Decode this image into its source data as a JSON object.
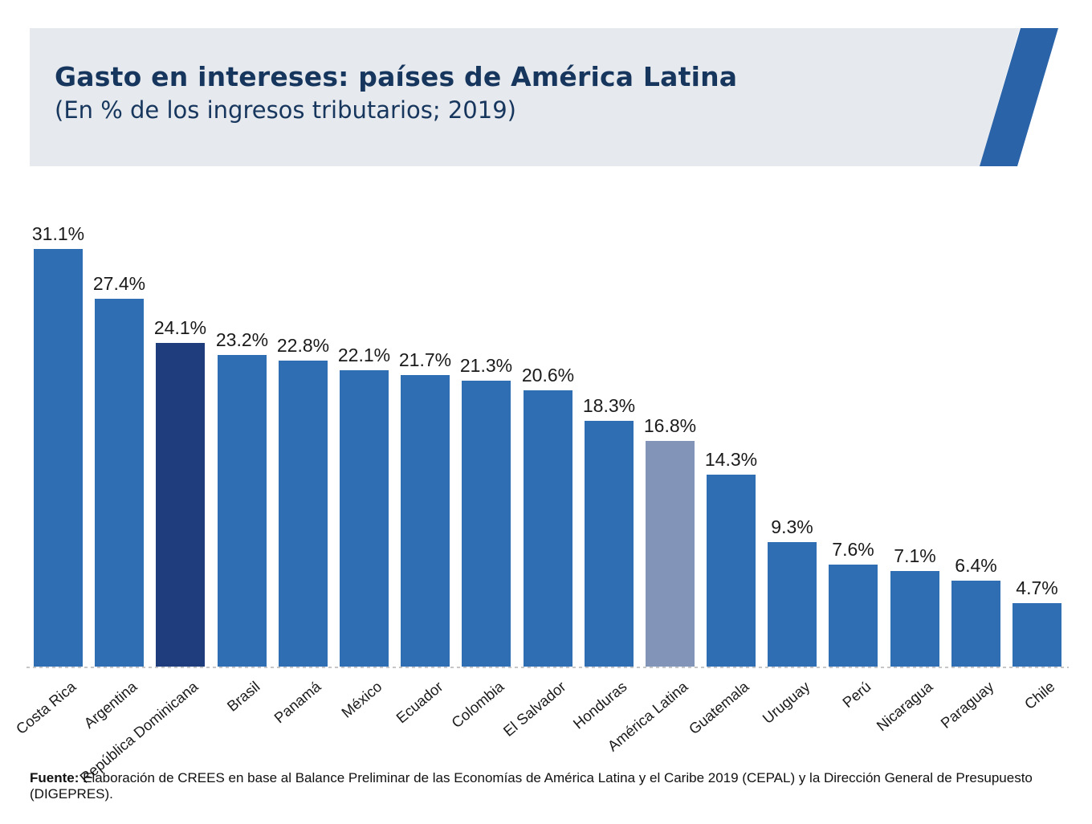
{
  "header": {
    "title": "Gasto en intereses: países de América Latina",
    "subtitle": "(En % de los ingresos tributarios; 2019)"
  },
  "footer": {
    "source_label": "Fuente:",
    "source_text": " Elaboración de CREES en base al Balance Preliminar de las Economías de América Latina y el Caribe 2019 (CEPAL) y la Dirección General de Presupuesto (DIGEPRES)."
  },
  "colors": {
    "bar_default": "#2F6EB2",
    "bar_highlight_dark": "#1F3D7C",
    "bar_highlight_muted": "#8295B8",
    "title_navy": "#17365D",
    "header_background": "#E6E9ED",
    "accent_stripe": "#2B63A8",
    "baseline_gray": "#C6C6C6",
    "label_black": "#1A1A1A"
  },
  "chart_data": {
    "type": "bar",
    "title": "Gasto en intereses: países de América Latina",
    "subtitle": "(En % de los ingresos tributarios; 2019)",
    "unit": "% de los ingresos tributarios",
    "year": "2019",
    "categories": [
      "Costa Rica",
      "Argentina",
      "República Dominicana",
      "Brasil",
      "Panamá",
      "México",
      "Ecuador",
      "Colombia",
      "El Salvador",
      "Honduras",
      "América Latina",
      "Guatemala",
      "Uruguay",
      "Perú",
      "Nicaragua",
      "Paraguay",
      "Chile"
    ],
    "values": [
      31.1,
      27.4,
      24.1,
      23.2,
      22.8,
      22.1,
      21.7,
      21.3,
      20.6,
      18.3,
      16.8,
      14.3,
      9.3,
      7.6,
      7.1,
      6.4,
      4.7
    ],
    "labels": [
      "31.1%",
      "27.4%",
      "24.1%",
      "23.2%",
      "22.8%",
      "22.1%",
      "21.7%",
      "21.3%",
      "20.6%",
      "18.3%",
      "16.8%",
      "14.3%",
      "9.3%",
      "7.6%",
      "7.1%",
      "6.4%",
      "4.7%"
    ],
    "highlight": {
      "República Dominicana": "dark",
      "América Latina": "muted"
    },
    "ylim": [
      0,
      33.5
    ],
    "grid": false,
    "legend": false,
    "value_labels_position": "above",
    "x_tick_rotation": -40,
    "baseline_style": "dotted"
  }
}
